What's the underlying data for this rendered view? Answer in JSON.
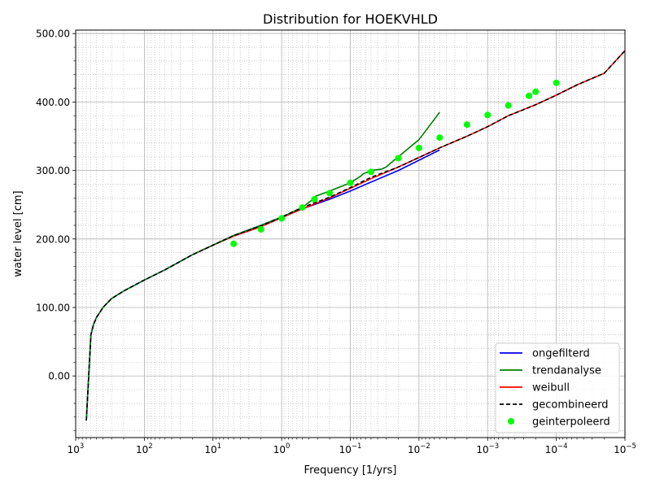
{
  "chart_data": {
    "type": "line",
    "title": "Distribution for HOEKVHLD",
    "xlabel": "Frequency [1/yrs]",
    "ylabel": "water level [cm]",
    "x_scale": "log",
    "x_reversed": true,
    "xlim": [
      1000,
      1e-05
    ],
    "ylim": [
      -90,
      505
    ],
    "grid": true,
    "legend_position": "lower-right",
    "x_ticks": [
      {
        "value": 1000,
        "base": "10",
        "exp": "3"
      },
      {
        "value": 100,
        "base": "10",
        "exp": "2"
      },
      {
        "value": 10,
        "base": "10",
        "exp": "1"
      },
      {
        "value": 1,
        "base": "10",
        "exp": "0"
      },
      {
        "value": 0.1,
        "base": "10",
        "exp": "−1"
      },
      {
        "value": 0.01,
        "base": "10",
        "exp": "−2"
      },
      {
        "value": 0.001,
        "base": "10",
        "exp": "−3"
      },
      {
        "value": 0.0001,
        "base": "10",
        "exp": "−4"
      },
      {
        "value": 1e-05,
        "base": "10",
        "exp": "−5"
      }
    ],
    "y_ticks": [
      {
        "value": 0,
        "label": "0.00"
      },
      {
        "value": 100,
        "label": "100.00"
      },
      {
        "value": 200,
        "label": "200.00"
      },
      {
        "value": 300,
        "label": "300.00"
      },
      {
        "value": 400,
        "label": "400.00"
      },
      {
        "value": 500,
        "label": "500.00"
      }
    ],
    "series": [
      {
        "name": "ongefilterd",
        "color": "#0000ff",
        "style": "solid",
        "x": [
          700,
          600,
          550,
          500,
          400,
          300,
          200,
          100,
          50,
          20,
          10,
          5,
          2,
          1,
          0.5,
          0.2,
          0.1,
          0.05,
          0.02,
          0.01,
          0.005
        ],
        "y": [
          -65,
          60,
          75,
          85,
          100,
          113,
          124,
          140,
          155,
          177,
          191,
          205,
          220,
          232,
          244,
          258,
          270,
          283,
          300,
          315,
          330
        ]
      },
      {
        "name": "trendanalyse",
        "color": "#008000",
        "style": "solid",
        "x": [
          700,
          600,
          550,
          500,
          400,
          300,
          200,
          100,
          50,
          20,
          10,
          5,
          2,
          1,
          0.5,
          0.35,
          0.33,
          0.2,
          0.1,
          0.07,
          0.065,
          0.05,
          0.035,
          0.03,
          0.025,
          0.02,
          0.01,
          0.005
        ],
        "y": [
          -65,
          60,
          75,
          85,
          100,
          113,
          124,
          140,
          155,
          177,
          191,
          205,
          220,
          232,
          246,
          258,
          262,
          270,
          282,
          292,
          295,
          300,
          302,
          305,
          312,
          320,
          345,
          385
        ]
      },
      {
        "name": "weibull",
        "color": "#ff0000",
        "style": "solid",
        "x": [
          20,
          10,
          5,
          2,
          1,
          0.5,
          0.2,
          0.1,
          0.05,
          0.02,
          0.01,
          0.005,
          0.002,
          0.001,
          0.0005,
          0.0002,
          0.0001,
          5e-05,
          2e-05,
          1e-05
        ],
        "y": [
          177,
          191,
          204,
          218,
          231,
          244,
          260,
          274,
          288,
          305,
          319,
          333,
          350,
          364,
          380,
          396,
          410,
          425,
          442,
          475
        ]
      },
      {
        "name": "gecombineerd",
        "color": "#000000",
        "style": "dashed",
        "x": [
          700,
          600,
          550,
          500,
          400,
          300,
          200,
          100,
          50,
          20,
          10,
          5,
          2,
          1,
          0.5,
          0.2,
          0.1,
          0.05,
          0.02,
          0.01,
          0.005,
          0.002,
          0.001,
          0.0005,
          0.0002,
          0.0001,
          5e-05,
          2e-05,
          1e-05
        ],
        "y": [
          -65,
          60,
          75,
          85,
          100,
          113,
          124,
          140,
          155,
          177,
          191,
          205,
          219,
          232,
          246,
          261,
          275,
          290,
          305,
          319,
          333,
          350,
          364,
          380,
          396,
          410,
          425,
          442,
          475
        ]
      },
      {
        "name": "geinterpoleerd",
        "color": "#00ff00",
        "style": "markers",
        "x": [
          5,
          2,
          1,
          0.5,
          0.3333,
          0.2,
          0.1,
          0.05,
          0.02,
          0.01,
          0.005,
          0.002,
          0.001,
          0.0005,
          0.00025,
          0.0002,
          0.0001
        ],
        "y": [
          193,
          214,
          230,
          246,
          258,
          267,
          282,
          298,
          318,
          333,
          348,
          367,
          381,
          395,
          409,
          415,
          428
        ]
      }
    ]
  }
}
